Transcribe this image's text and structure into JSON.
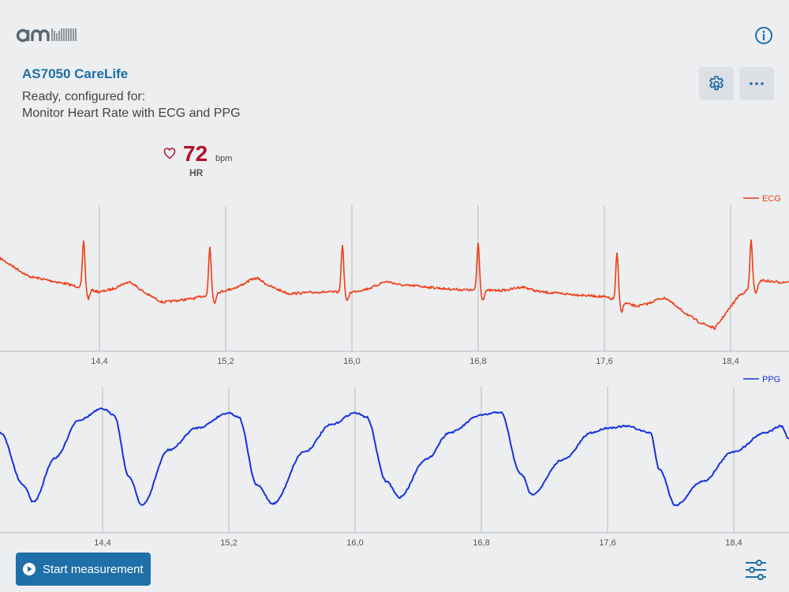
{
  "header": {
    "logo_icon": "ams-logo",
    "info_icon": "info-circle-icon"
  },
  "device": {
    "title": "AS7050 CareLife",
    "status_line1": "Ready, configured for:",
    "status_line2": "Monitor Heart Rate with ECG and PPG"
  },
  "toolbar": {
    "settings_icon": "gear-icon",
    "more_icon": "ellipsis-icon"
  },
  "heart_rate": {
    "value": "72",
    "unit": "bpm",
    "label": "HR",
    "color": "#b0122a"
  },
  "colors": {
    "accent": "#1f6fa8",
    "ecg": "#f03c14",
    "ppg": "#1633dd",
    "background": "#eceef0"
  },
  "chart_data": [
    {
      "type": "line",
      "series": [
        {
          "name": "ECG",
          "color": "#f03c14"
        }
      ],
      "x_ticks": [
        "14,4",
        "15,2",
        "16,0",
        "16,8",
        "17,6",
        "18,4"
      ],
      "x_tick_values": [
        14.4,
        15.2,
        16.0,
        16.8,
        17.6,
        18.4
      ],
      "xlim": [
        13.77,
        18.77
      ],
      "grid": "vertical",
      "legend": "top-right",
      "beats": [
        14.3,
        15.1,
        15.94,
        16.8,
        17.68,
        18.53
      ]
    },
    {
      "type": "line",
      "series": [
        {
          "name": "PPG",
          "color": "#1633dd"
        }
      ],
      "x_ticks": [
        "14,4",
        "15,2",
        "16,0",
        "16,8",
        "17,6",
        "18,4"
      ],
      "x_tick_values": [
        14.4,
        15.2,
        16.0,
        16.8,
        17.6,
        18.4
      ],
      "xlim": [
        13.75,
        18.75
      ],
      "grid": "vertical",
      "legend": "top-right"
    }
  ],
  "footer": {
    "start_label": "Start measurement",
    "start_icon": "play-circle-icon",
    "filter_icon": "sliders-icon"
  }
}
